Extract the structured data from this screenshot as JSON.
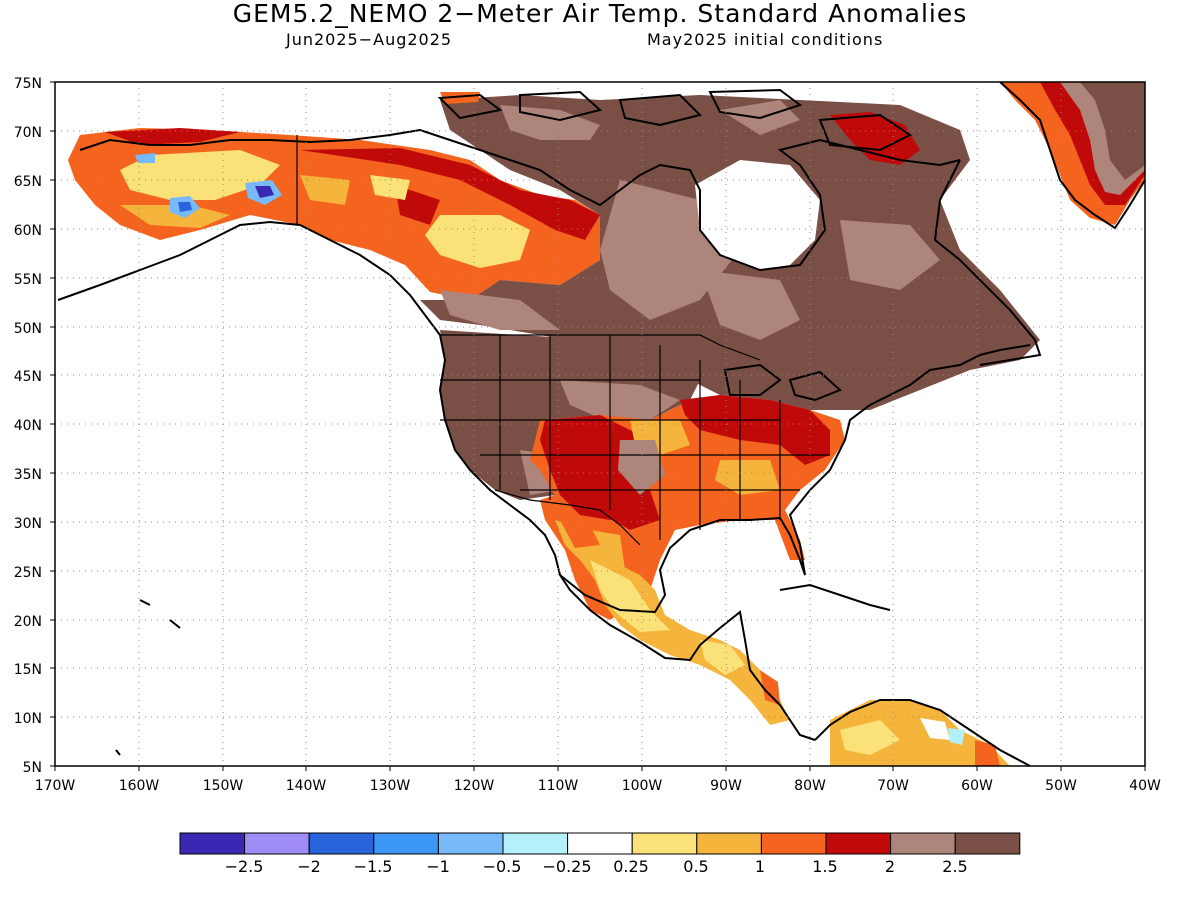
{
  "title": "GEM5.2_NEMO 2−Meter Air Temp. Standard Anomalies",
  "subtitle_left": "Jun2025−Aug2025",
  "subtitle_right": "May2025 initial conditions",
  "lat_labels": [
    "75N",
    "70N",
    "65N",
    "60N",
    "55N",
    "50N",
    "45N",
    "40N",
    "35N",
    "30N",
    "25N",
    "20N",
    "15N",
    "10N",
    "5N"
  ],
  "lon_labels": [
    "170W",
    "160W",
    "150W",
    "140W",
    "130W",
    "120W",
    "110W",
    "100W",
    "90W",
    "80W",
    "70W",
    "60W",
    "50W",
    "40W"
  ],
  "colorbar": {
    "colors": [
      "#3a28b4",
      "#a08cf5",
      "#2864dc",
      "#3c96f5",
      "#78b9fa",
      "#b4f0fa",
      "#ffffff",
      "#fae178",
      "#f5b43c",
      "#f5641e",
      "#c00a0a",
      "#ad857a",
      "#7a4f46"
    ],
    "labels": [
      "−2.5",
      "−2",
      "−1.5",
      "−1",
      "−0.5",
      "−0.25",
      "0.25",
      "0.5",
      "1",
      "1.5",
      "2",
      "2.5"
    ]
  }
}
